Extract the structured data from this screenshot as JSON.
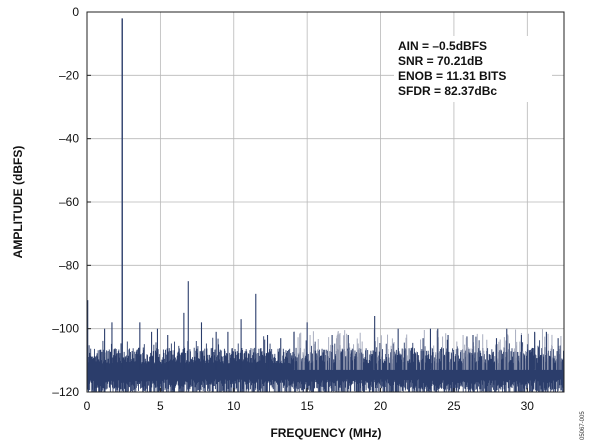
{
  "chart_data": {
    "type": "line",
    "title": "",
    "xlabel": "FREQUENCY (MHz)",
    "ylabel": "AMPLITUDE (dBFS)",
    "xlim": [
      0,
      32.5
    ],
    "ylim": [
      -120,
      0
    ],
    "x_ticks": [
      0,
      5,
      10,
      15,
      20,
      25,
      30
    ],
    "y_ticks": [
      0,
      -20,
      -40,
      -60,
      -80,
      -100,
      -120
    ],
    "x_tick_labels": [
      "0",
      "5",
      "10",
      "15",
      "20",
      "25",
      "30"
    ],
    "y_tick_labels": [
      "0",
      "–20",
      "–40",
      "–60",
      "–80",
      "–100",
      "–120"
    ],
    "grid": true,
    "annotations": [
      "AIN = –0.5dBFS",
      "SNR = 70.21dB",
      "ENOB = 11.31 BITS",
      "SFDR = 82.37dBc"
    ],
    "figure_id": "05067-005",
    "noise_floor_dbfs": -113,
    "series": [
      {
        "color": "#2b3d6b",
        "x": [
          0.05,
          2.4,
          1.2,
          1.7,
          3.6,
          4.4,
          4.8,
          5.5,
          6.6,
          6.9,
          7.8,
          8.8,
          9.6,
          10.5,
          11.5,
          12.3,
          13.2,
          14.1,
          15.0,
          16.7,
          17.8,
          19.6,
          21.2,
          22.9,
          23.4,
          23.9,
          24.6,
          26.3,
          27.9,
          28.6,
          29.6,
          30.5,
          31.3,
          32.1
        ],
        "values": [
          -91,
          -2,
          -100,
          -98,
          -98,
          -101,
          -100,
          -102,
          -95,
          -85,
          -98,
          -101,
          -101,
          -97,
          -89,
          -102,
          -103,
          -101,
          -98,
          -102,
          -102,
          -96,
          -100,
          -103,
          -100,
          -100,
          -102,
          -102,
          -103,
          -100,
          -102,
          -101,
          -101,
          -103
        ]
      }
    ]
  }
}
